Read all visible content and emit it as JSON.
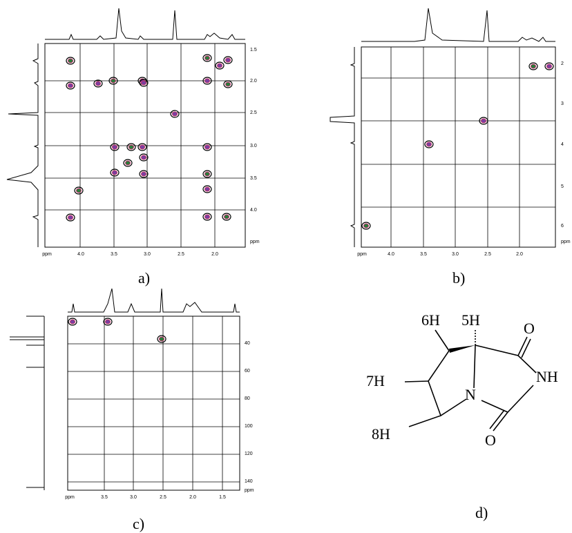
{
  "panels": [
    {
      "label": "a)",
      "x_ticks": [
        "ppm",
        "4.0",
        "3.5",
        "3.0",
        "2.5",
        "2.0"
      ],
      "y_ticks": [
        "1.5",
        "2.0",
        "2.5",
        "3.0",
        "3.5",
        "4.0",
        "ppm"
      ]
    },
    {
      "label": "b)",
      "x_ticks": [
        "ppm",
        "4.0",
        "3.5",
        "3.0",
        "2.5",
        "2.0"
      ],
      "y_ticks": [
        "2",
        "3",
        "4",
        "5",
        "6",
        "ppm"
      ]
    },
    {
      "label": "c)",
      "x_ticks": [
        "ppm",
        "3.5",
        "3.0",
        "2.5",
        "2.0",
        "1.5"
      ],
      "y_ticks": [
        "40",
        "60",
        "80",
        "100",
        "120",
        "140",
        "ppm"
      ]
    }
  ],
  "molecule": {
    "label": "d)",
    "atoms": [
      "6H",
      "5H",
      "O",
      "7H",
      "NH",
      "N",
      "8H",
      "O"
    ]
  }
}
